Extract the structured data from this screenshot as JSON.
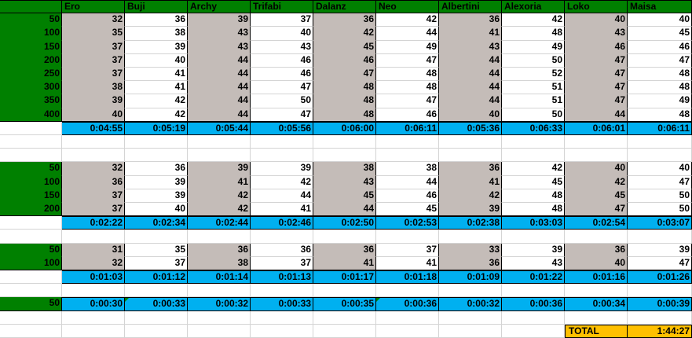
{
  "header": [
    "",
    "Ero",
    "Buji",
    "Archy",
    "Trifabi",
    "Dalanz",
    "Neo",
    "Albertini",
    "Alexoria",
    "Loko",
    "Maisa"
  ],
  "blocks": [
    {
      "rows": [
        {
          "label": "50",
          "values": [
            "32",
            "36",
            "39",
            "37",
            "36",
            "42",
            "36",
            "42",
            "40",
            "40"
          ]
        },
        {
          "label": "100",
          "values": [
            "35",
            "38",
            "43",
            "40",
            "42",
            "44",
            "41",
            "48",
            "43",
            "45"
          ]
        },
        {
          "label": "150",
          "values": [
            "37",
            "39",
            "43",
            "43",
            "45",
            "49",
            "43",
            "49",
            "46",
            "46"
          ]
        },
        {
          "label": "200",
          "values": [
            "37",
            "40",
            "44",
            "46",
            "46",
            "47",
            "44",
            "50",
            "47",
            "47"
          ]
        },
        {
          "label": "250",
          "values": [
            "37",
            "41",
            "44",
            "46",
            "47",
            "48",
            "44",
            "52",
            "47",
            "48"
          ]
        },
        {
          "label": "300",
          "values": [
            "38",
            "41",
            "44",
            "47",
            "48",
            "48",
            "44",
            "51",
            "47",
            "48"
          ]
        },
        {
          "label": "350",
          "values": [
            "39",
            "42",
            "44",
            "50",
            "48",
            "47",
            "44",
            "51",
            "47",
            "49"
          ]
        },
        {
          "label": "400",
          "values": [
            "40",
            "42",
            "44",
            "47",
            "48",
            "46",
            "40",
            "50",
            "44",
            "48"
          ]
        }
      ],
      "totals": [
        "0:04:55",
        "0:05:19",
        "0:05:44",
        "0:05:56",
        "0:06:00",
        "0:06:11",
        "0:05:36",
        "0:06:33",
        "0:06:01",
        "0:06:11"
      ]
    },
    {
      "rows": [
        {
          "label": "50",
          "values": [
            "32",
            "36",
            "39",
            "39",
            "38",
            "38",
            "36",
            "42",
            "40",
            "40"
          ]
        },
        {
          "label": "100",
          "values": [
            "36",
            "39",
            "41",
            "42",
            "43",
            "44",
            "41",
            "45",
            "42",
            "47"
          ]
        },
        {
          "label": "150",
          "values": [
            "37",
            "39",
            "42",
            "44",
            "45",
            "46",
            "42",
            "48",
            "45",
            "50"
          ]
        },
        {
          "label": "200",
          "values": [
            "37",
            "40",
            "42",
            "41",
            "44",
            "45",
            "39",
            "48",
            "47",
            "50"
          ]
        }
      ],
      "totals": [
        "0:02:22",
        "0:02:34",
        "0:02:44",
        "0:02:46",
        "0:02:50",
        "0:02:53",
        "0:02:38",
        "0:03:03",
        "0:02:54",
        "0:03:07"
      ]
    },
    {
      "rows": [
        {
          "label": "50",
          "values": [
            "31",
            "35",
            "36",
            "36",
            "36",
            "37",
            "33",
            "39",
            "36",
            "39"
          ]
        },
        {
          "label": "100",
          "values": [
            "32",
            "37",
            "38",
            "37",
            "41",
            "41",
            "36",
            "43",
            "40",
            "47"
          ]
        }
      ],
      "totals": [
        "0:01:03",
        "0:01:12",
        "0:01:14",
        "0:01:13",
        "0:01:17",
        "0:01:18",
        "0:01:09",
        "0:01:22",
        "0:01:16",
        "0:01:26"
      ]
    }
  ],
  "single": {
    "label": "50",
    "totals": [
      "0:00:30",
      "0:00:33",
      "0:00:32",
      "0:00:33",
      "0:00:35",
      "0:00:36",
      "0:00:32",
      "0:00:36",
      "0:00:34",
      "0:00:39"
    ]
  },
  "grand_total": {
    "label": "TOTAL",
    "value": "1:44:27"
  },
  "colors": {
    "green": "#008000",
    "gray": "#c4bcb8",
    "blue": "#00b0f0",
    "gold": "#ffc000"
  }
}
